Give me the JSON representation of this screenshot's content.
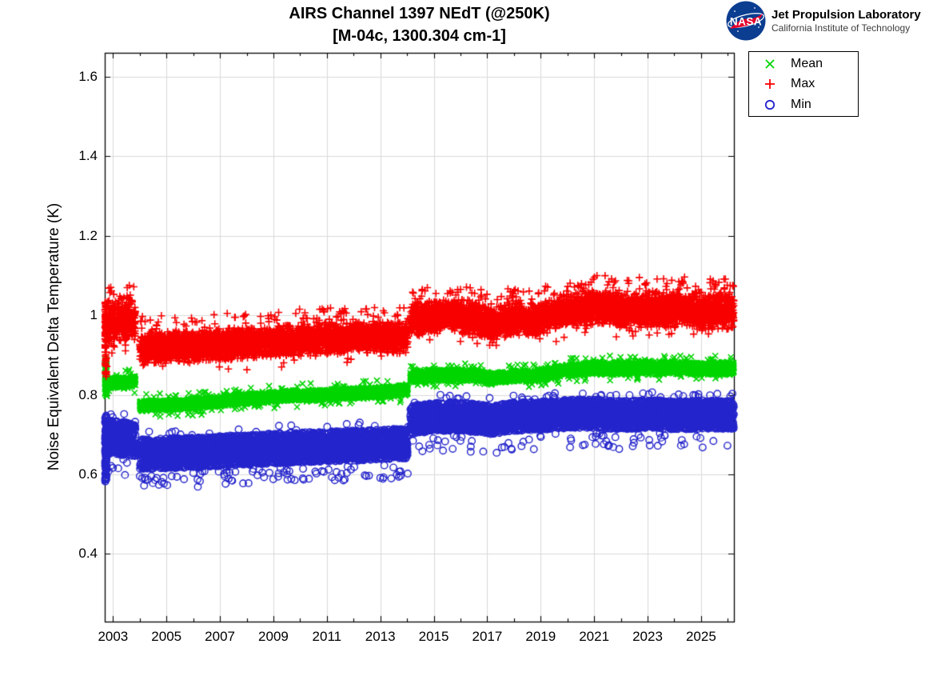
{
  "header": {
    "logo": {
      "wordmark": "NASA",
      "org_line1": "Jet Propulsion Laboratory",
      "org_line2": "California Institute of Technology",
      "meatball_blue": "#0b3d91",
      "swoosh_red": "#e4002b"
    }
  },
  "chart_data": {
    "type": "scatter",
    "title": "AIRS Channel 1397 NEdT (@250K)",
    "subtitle": "[M-04c, 1300.304 cm-1]",
    "ylabel": "Noise Equivalent Delta Temperature (K)",
    "xlabel": "",
    "xlim": [
      2002.69,
      2026.23
    ],
    "ylim": [
      0.23,
      1.66
    ],
    "grid": true,
    "grid_color": "#d9d9d9",
    "axis_color": "#000000",
    "legend_position": "outside-top-right",
    "legend_order": [
      "Mean",
      "Max",
      "Min"
    ],
    "xticks": [
      {
        "v": 2003,
        "label": "2003"
      },
      {
        "v": 2005,
        "label": "2005"
      },
      {
        "v": 2007,
        "label": "2007"
      },
      {
        "v": 2009,
        "label": "2009"
      },
      {
        "v": 2011,
        "label": "2011"
      },
      {
        "v": 2013,
        "label": "2013"
      },
      {
        "v": 2015,
        "label": "2015"
      },
      {
        "v": 2017,
        "label": "2017"
      },
      {
        "v": 2019,
        "label": "2019"
      },
      {
        "v": 2021,
        "label": "2021"
      },
      {
        "v": 2023,
        "label": "2023"
      },
      {
        "v": 2025,
        "label": "2025"
      }
    ],
    "xticks_minor": [
      2004,
      2006,
      2008,
      2010,
      2012,
      2014,
      2016,
      2018,
      2020,
      2022,
      2024,
      2026
    ],
    "yticks": [
      {
        "v": 0.4,
        "label": "0.4"
      },
      {
        "v": 0.6,
        "label": "0.6"
      },
      {
        "v": 0.8,
        "label": "0.8"
      },
      {
        "v": 1.0,
        "label": "1"
      },
      {
        "v": 1.2,
        "label": "1.2"
      },
      {
        "v": 1.4,
        "label": "1.4"
      },
      {
        "v": 1.6,
        "label": "1.6"
      }
    ],
    "x_start": 2002.7,
    "points_per_year": 365,
    "gaps": [
      [
        2003.84,
        2004.0
      ],
      [
        2014.03,
        2014.12
      ]
    ],
    "series": [
      {
        "name": "Mean",
        "marker": "x",
        "color": "#00d500",
        "dist": "tri",
        "seed": 101,
        "keypoints": [
          [
            2002.78,
            0.829,
            0.011
          ],
          [
            2003.4,
            0.832,
            0.011
          ],
          [
            2003.83,
            0.834,
            0.011
          ],
          [
            2004.0,
            0.772,
            0.01
          ],
          [
            2005.0,
            0.774,
            0.01
          ],
          [
            2006.0,
            0.778,
            0.01
          ],
          [
            2007.0,
            0.784,
            0.01
          ],
          [
            2008.0,
            0.79,
            0.01
          ],
          [
            2009.0,
            0.795,
            0.01
          ],
          [
            2010.0,
            0.798,
            0.01
          ],
          [
            2011.0,
            0.801,
            0.01
          ],
          [
            2012.0,
            0.804,
            0.01
          ],
          [
            2013.0,
            0.807,
            0.01
          ],
          [
            2014.02,
            0.813,
            0.01
          ],
          [
            2014.12,
            0.846,
            0.011
          ],
          [
            2015.0,
            0.849,
            0.011
          ],
          [
            2016.0,
            0.85,
            0.011
          ],
          [
            2016.6,
            0.848,
            0.011
          ],
          [
            2017.2,
            0.841,
            0.011
          ],
          [
            2017.7,
            0.846,
            0.011
          ],
          [
            2018.2,
            0.849,
            0.011
          ],
          [
            2018.6,
            0.846,
            0.011
          ],
          [
            2019.2,
            0.853,
            0.011
          ],
          [
            2020.0,
            0.861,
            0.011
          ],
          [
            2021.0,
            0.868,
            0.012
          ],
          [
            2022.0,
            0.866,
            0.012
          ],
          [
            2022.6,
            0.87,
            0.012
          ],
          [
            2023.2,
            0.866,
            0.012
          ],
          [
            2024.0,
            0.869,
            0.012
          ],
          [
            2025.0,
            0.866,
            0.012
          ],
          [
            2026.23,
            0.868,
            0.012
          ]
        ],
        "outliers": [
          {
            "rate": 0.012,
            "dir": 1,
            "lo": 0.004,
            "hi": 0.02
          },
          {
            "rate": 0.012,
            "dir": -1,
            "lo": 0.004,
            "hi": 0.02
          }
        ],
        "transient": {
          "from": 2002.7,
          "to": 2002.77,
          "lo": 0.795,
          "hi": 0.888,
          "count": 70
        }
      },
      {
        "name": "Max",
        "marker": "+",
        "color": "#f80000",
        "dist": "tri",
        "seed": 202,
        "keypoints": [
          [
            2002.78,
            0.978,
            0.04
          ],
          [
            2003.4,
            0.99,
            0.04
          ],
          [
            2003.83,
            0.988,
            0.038
          ],
          [
            2004.0,
            0.92,
            0.03
          ],
          [
            2006.0,
            0.922,
            0.028
          ],
          [
            2008.0,
            0.93,
            0.028
          ],
          [
            2010.0,
            0.938,
            0.028
          ],
          [
            2012.0,
            0.943,
            0.028
          ],
          [
            2013.0,
            0.947,
            0.028
          ],
          [
            2013.6,
            0.94,
            0.028
          ],
          [
            2014.02,
            0.948,
            0.028
          ],
          [
            2014.12,
            0.988,
            0.03
          ],
          [
            2015.0,
            0.997,
            0.03
          ],
          [
            2016.0,
            0.999,
            0.03
          ],
          [
            2016.6,
            0.994,
            0.03
          ],
          [
            2017.2,
            0.976,
            0.03
          ],
          [
            2017.7,
            0.988,
            0.03
          ],
          [
            2018.2,
            0.992,
            0.03
          ],
          [
            2018.6,
            0.986,
            0.03
          ],
          [
            2019.2,
            0.998,
            0.03
          ],
          [
            2020.0,
            1.01,
            0.03
          ],
          [
            2021.0,
            1.018,
            0.032
          ],
          [
            2021.6,
            1.02,
            0.032
          ],
          [
            2022.2,
            1.012,
            0.032
          ],
          [
            2023.0,
            1.016,
            0.032
          ],
          [
            2023.6,
            1.012,
            0.032
          ],
          [
            2024.3,
            1.015,
            0.032
          ],
          [
            2025.0,
            1.01,
            0.032
          ],
          [
            2026.23,
            1.012,
            0.032
          ]
        ],
        "outliers": [
          {
            "rate": 0.03,
            "dir": 1,
            "lo": 0.01,
            "hi": 0.05
          },
          {
            "rate": 0.006,
            "dir": -1,
            "lo": 0.01,
            "hi": 0.04
          }
        ],
        "transient": {
          "from": 2002.7,
          "to": 2002.77,
          "lo": 0.845,
          "hi": 1.035,
          "count": 90
        }
      },
      {
        "name": "Min",
        "marker": "o",
        "color": "#2424cc",
        "dist": "uni",
        "seed": 303,
        "keypoints": [
          [
            2002.78,
            0.695,
            0.042
          ],
          [
            2003.4,
            0.69,
            0.042
          ],
          [
            2003.83,
            0.685,
            0.04
          ],
          [
            2004.0,
            0.65,
            0.038
          ],
          [
            2006.0,
            0.655,
            0.038
          ],
          [
            2008.0,
            0.662,
            0.038
          ],
          [
            2010.0,
            0.668,
            0.038
          ],
          [
            2012.0,
            0.672,
            0.038
          ],
          [
            2013.0,
            0.675,
            0.038
          ],
          [
            2014.02,
            0.678,
            0.038
          ],
          [
            2014.12,
            0.738,
            0.036
          ],
          [
            2015.0,
            0.744,
            0.036
          ],
          [
            2016.0,
            0.746,
            0.036
          ],
          [
            2017.2,
            0.736,
            0.036
          ],
          [
            2017.7,
            0.744,
            0.036
          ],
          [
            2019.0,
            0.748,
            0.036
          ],
          [
            2020.0,
            0.752,
            0.036
          ],
          [
            2021.0,
            0.753,
            0.036
          ],
          [
            2022.0,
            0.749,
            0.036
          ],
          [
            2023.0,
            0.752,
            0.036
          ],
          [
            2024.0,
            0.749,
            0.036
          ],
          [
            2025.0,
            0.75,
            0.036
          ],
          [
            2026.23,
            0.749,
            0.036
          ]
        ],
        "outliers": [
          {
            "rate": 0.02,
            "dir": -1,
            "lo": 0.01,
            "hi": 0.05
          },
          {
            "rate": 0.006,
            "dir": 1,
            "lo": 0.005,
            "hi": 0.02
          }
        ],
        "transient": {
          "from": 2002.7,
          "to": 2002.77,
          "lo": 0.578,
          "hi": 0.752,
          "count": 90
        },
        "extra_points": [
          [
            2010.1,
            0.59
          ]
        ]
      }
    ]
  }
}
